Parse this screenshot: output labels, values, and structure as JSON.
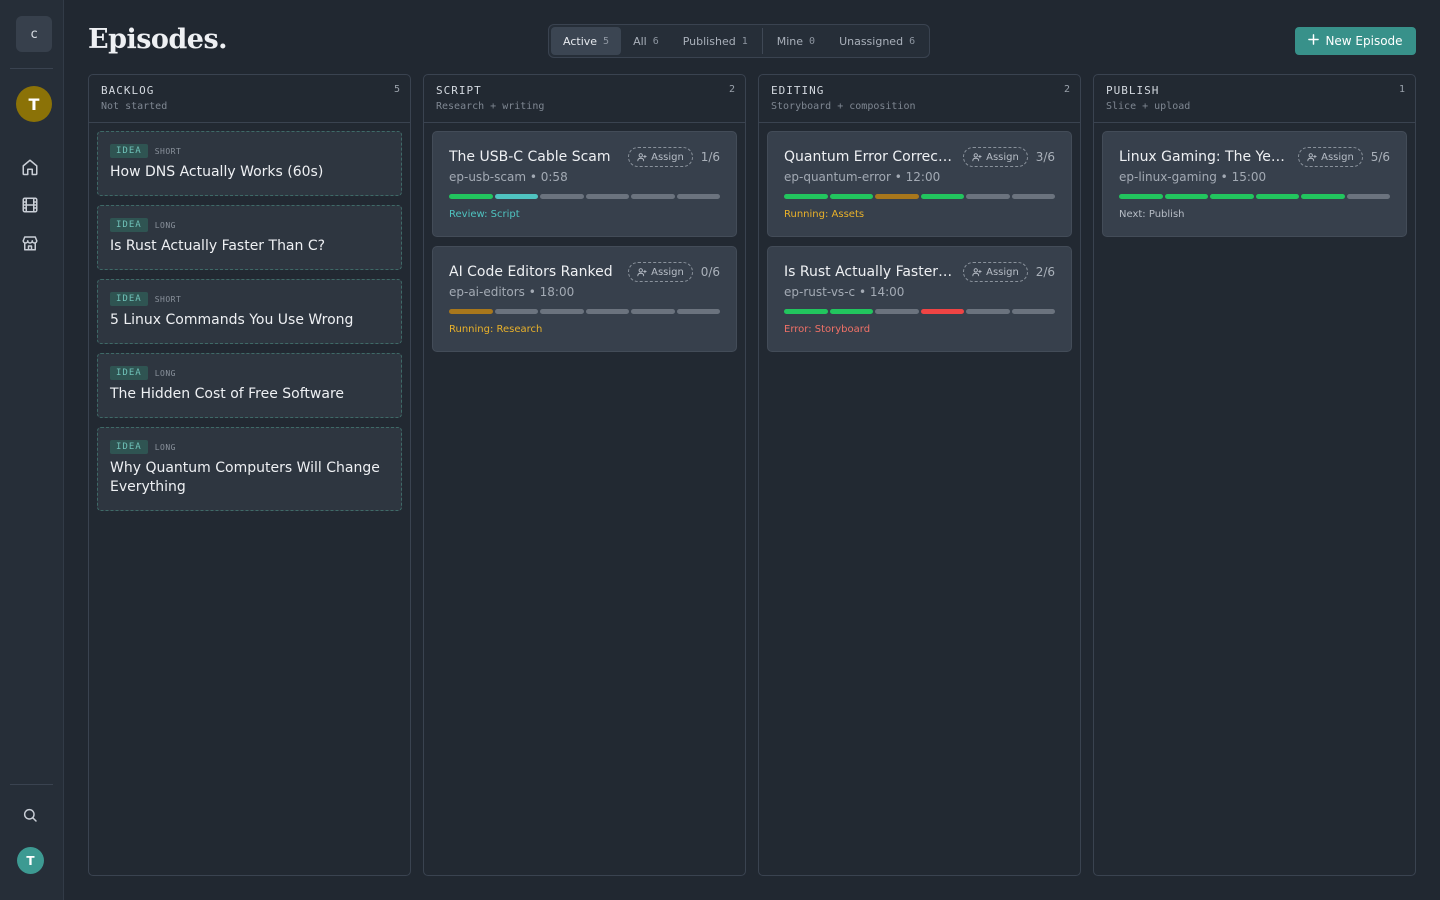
{
  "sidebar": {
    "logo": "c",
    "workspace_initial": "T",
    "nav_icons": [
      "home-icon",
      "film-icon",
      "store-icon"
    ],
    "bottom_icons": [
      "search-icon"
    ],
    "user_initial": "T"
  },
  "header": {
    "title": "Episodes.",
    "new_button": "New Episode",
    "filters": [
      {
        "label": "Active",
        "count": "5",
        "active": true
      },
      {
        "label": "All",
        "count": "6",
        "active": false
      },
      {
        "label": "Published",
        "count": "1",
        "active": false
      },
      {
        "label": "Mine",
        "count": "0",
        "active": false
      },
      {
        "label": "Unassigned",
        "count": "6",
        "active": false
      }
    ]
  },
  "colors": {
    "accent": "#38918a",
    "done": "#22c55e",
    "review": "#4fc3c0",
    "running": "#a8771c",
    "error": "#ef4444",
    "pending": "#6b737e",
    "status_review": "#4fc3c0",
    "status_running": "#e9b12a",
    "status_error": "#f07167",
    "status_next": "#b7bdc6"
  },
  "columns": [
    {
      "title": "BACKLOG",
      "subtitle": "Not started",
      "count": "5",
      "ideas": [
        {
          "tag": "IDEA",
          "kind": "SHORT",
          "title": "How DNS Actually Works (60s)"
        },
        {
          "tag": "IDEA",
          "kind": "LONG",
          "title": "Is Rust Actually Faster Than C?"
        },
        {
          "tag": "IDEA",
          "kind": "SHORT",
          "title": "5 Linux Commands You Use Wrong"
        },
        {
          "tag": "IDEA",
          "kind": "LONG",
          "title": "The Hidden Cost of Free Software"
        },
        {
          "tag": "IDEA",
          "kind": "LONG",
          "title": "Why Quantum Computers Will Change Everything"
        }
      ]
    },
    {
      "title": "SCRIPT",
      "subtitle": "Research + writing",
      "count": "2",
      "episodes": [
        {
          "title": "The USB-C Cable Scam",
          "assign": "Assign",
          "progress": "1/6",
          "slug": "ep-usb-scam",
          "duration": "0:58",
          "stages": [
            "done",
            "review",
            "pending",
            "pending",
            "pending",
            "pending"
          ],
          "status": "Review: Script",
          "status_kind": "review"
        },
        {
          "title": "AI Code Editors Ranked",
          "assign": "Assign",
          "progress": "0/6",
          "slug": "ep-ai-editors",
          "duration": "18:00",
          "stages": [
            "running",
            "pending",
            "pending",
            "pending",
            "pending",
            "pending"
          ],
          "status": "Running: Research",
          "status_kind": "running"
        }
      ]
    },
    {
      "title": "EDITING",
      "subtitle": "Storyboard + composition",
      "count": "2",
      "episodes": [
        {
          "title": "Quantum Error Correction",
          "assign": "Assign",
          "progress": "3/6",
          "slug": "ep-quantum-error",
          "duration": "12:00",
          "stages": [
            "done",
            "done",
            "running",
            "done",
            "pending",
            "pending"
          ],
          "status": "Running: Assets",
          "status_kind": "running"
        },
        {
          "title": "Is Rust Actually Faster Than C?",
          "assign": "Assign",
          "progress": "2/6",
          "slug": "ep-rust-vs-c",
          "duration": "14:00",
          "stages": [
            "done",
            "done",
            "pending",
            "error",
            "pending",
            "pending"
          ],
          "status": "Error: Storyboard",
          "status_kind": "error"
        }
      ]
    },
    {
      "title": "PUBLISH",
      "subtitle": "Slice + upload",
      "count": "1",
      "episodes": [
        {
          "title": "Linux Gaming: The Year of Linux",
          "assign": "Assign",
          "progress": "5/6",
          "slug": "ep-linux-gaming",
          "duration": "15:00",
          "stages": [
            "done",
            "done",
            "done",
            "done",
            "done",
            "pending"
          ],
          "status": "Next: Publish",
          "status_kind": "next"
        }
      ]
    }
  ]
}
